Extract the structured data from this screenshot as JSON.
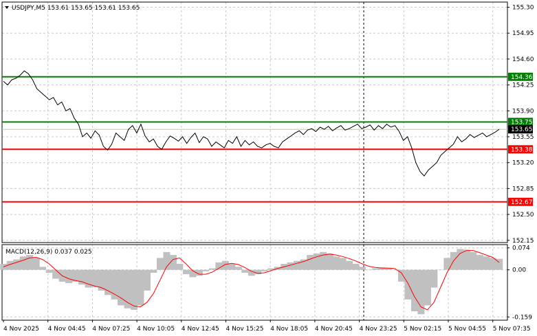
{
  "header": {
    "symbol_line": "USDJPY,M5  153.61 153.65 153.61 153.65",
    "menu_icon": "triangle-down-icon"
  },
  "macd_header": "MACD(12,26,9) 0.037 0.025",
  "colors": {
    "price_line": "#000000",
    "resistance": "#008000",
    "support": "#ff0000",
    "signal": "#ff0000",
    "histogram": "#c0c0c0",
    "grid": "#c8c8c8",
    "current_price_tag": "#000000"
  },
  "chart_data": [
    {
      "type": "line",
      "title": "USDJPY,M5",
      "y_axis_ticks": [
        "155.30",
        "154.95",
        "154.60",
        "154.25",
        "153.90",
        "153.55",
        "153.20",
        "152.85",
        "152.50",
        "152.15"
      ],
      "ylim": [
        152.12,
        155.37
      ],
      "x_axis_ticks": [
        "4 Nov 2025",
        "4 Nov 04:45",
        "4 Nov 07:25",
        "4 Nov 10:05",
        "4 Nov 12:45",
        "4 Nov 15:25",
        "4 Nov 18:05",
        "4 Nov 20:45",
        "4 Nov 23:25",
        "5 Nov 02:15",
        "5 Nov 04:55",
        "5 Nov 07:35"
      ],
      "grid": true,
      "levels": [
        {
          "label": "154.36",
          "value": 154.36,
          "color": "#008000"
        },
        {
          "label": "153.75",
          "value": 153.75,
          "color": "#008000"
        },
        {
          "label": "153.38",
          "value": 153.38,
          "color": "#ff0000"
        },
        {
          "label": "152.67",
          "value": 152.67,
          "color": "#ff0000"
        }
      ],
      "current_price": {
        "label": "153.65",
        "value": 153.65
      },
      "series": [
        {
          "values": [
            154.3,
            154.25,
            154.32,
            154.34,
            154.38,
            154.44,
            154.4,
            154.32,
            154.2,
            154.15,
            154.1,
            154.05,
            154.08,
            153.98,
            154.02,
            153.9,
            153.93,
            153.8,
            153.72,
            153.55,
            153.6,
            153.53,
            153.63,
            153.57,
            153.42,
            153.37,
            153.45,
            153.6,
            153.55,
            153.5,
            153.65,
            153.7,
            153.6,
            153.72,
            153.56,
            153.48,
            153.52,
            153.42,
            153.38,
            153.48,
            153.56,
            153.53,
            153.49,
            153.55,
            153.46,
            153.54,
            153.6,
            153.47,
            153.55,
            153.52,
            153.42,
            153.48,
            153.44,
            153.4,
            153.5,
            153.46,
            153.55,
            153.42,
            153.5,
            153.44,
            153.48,
            153.42,
            153.4,
            153.44,
            153.46,
            153.42,
            153.4,
            153.48,
            153.52,
            153.56,
            153.6,
            153.63,
            153.58,
            153.64,
            153.66,
            153.62,
            153.68,
            153.65,
            153.69,
            153.63,
            153.67,
            153.7,
            153.64,
            153.66,
            153.69,
            153.72,
            153.66,
            153.68,
            153.71,
            153.64,
            153.7,
            153.66,
            153.72,
            153.68,
            153.7,
            153.62,
            153.5,
            153.55,
            153.4,
            153.2,
            153.08,
            153.02,
            153.1,
            153.15,
            153.2,
            153.3,
            153.35,
            153.4,
            153.45,
            153.55,
            153.48,
            153.52,
            153.58,
            153.54,
            153.57,
            153.6,
            153.55,
            153.58,
            153.61,
            153.65
          ]
        }
      ],
      "vertical_marker_at": "4 Nov 23:25"
    },
    {
      "type": "bar",
      "title": "MACD(12,26,9)",
      "y_axis_ticks": [
        "0.074",
        "0.00",
        "-0.159"
      ],
      "ylim": [
        -0.17,
        0.085
      ],
      "macd_value": 0.037,
      "signal_value": 0.025,
      "series": [
        {
          "name": "MACD",
          "values": [
            0.02,
            0.03,
            0.035,
            0.045,
            0.05,
            0.04,
            0.01,
            -0.01,
            -0.03,
            -0.04,
            -0.045,
            -0.04,
            -0.05,
            -0.06,
            -0.058,
            -0.07,
            -0.085,
            -0.1,
            -0.12,
            -0.13,
            -0.135,
            -0.12,
            -0.07,
            -0.01,
            0.04,
            0.06,
            0.05,
            0.02,
            -0.015,
            -0.025,
            -0.02,
            -0.005,
            0.005,
            0.025,
            0.03,
            0.02,
            0.01,
            -0.01,
            -0.02,
            -0.015,
            -0.005,
            0.005,
            0.01,
            0.02,
            0.025,
            0.03,
            0.035,
            0.05,
            0.055,
            0.06,
            0.055,
            0.045,
            0.04,
            0.03,
            0.02,
            0.01,
            0.0,
            0.005,
            0.008,
            0.006,
            0.0,
            -0.04,
            -0.1,
            -0.14,
            -0.15,
            -0.12,
            -0.06,
            0.0,
            0.04,
            0.06,
            0.07,
            0.068,
            0.06,
            0.05,
            0.045,
            0.04,
            0.037
          ]
        },
        {
          "name": "Signal",
          "values": [
            0.01,
            0.018,
            0.025,
            0.032,
            0.04,
            0.042,
            0.035,
            0.02,
            0.0,
            -0.02,
            -0.03,
            -0.036,
            -0.04,
            -0.048,
            -0.055,
            -0.06,
            -0.07,
            -0.082,
            -0.095,
            -0.11,
            -0.122,
            -0.125,
            -0.11,
            -0.08,
            -0.035,
            0.01,
            0.035,
            0.04,
            0.02,
            -0.003,
            -0.015,
            -0.015,
            -0.008,
            0.005,
            0.018,
            0.022,
            0.018,
            0.008,
            -0.005,
            -0.012,
            -0.01,
            -0.003,
            0.004,
            0.01,
            0.016,
            0.022,
            0.028,
            0.036,
            0.044,
            0.05,
            0.053,
            0.05,
            0.045,
            0.038,
            0.03,
            0.02,
            0.012,
            0.008,
            0.006,
            0.006,
            0.004,
            -0.01,
            -0.045,
            -0.09,
            -0.125,
            -0.135,
            -0.11,
            -0.06,
            -0.01,
            0.03,
            0.055,
            0.065,
            0.065,
            0.058,
            0.05,
            0.042,
            0.025
          ]
        }
      ]
    }
  ]
}
